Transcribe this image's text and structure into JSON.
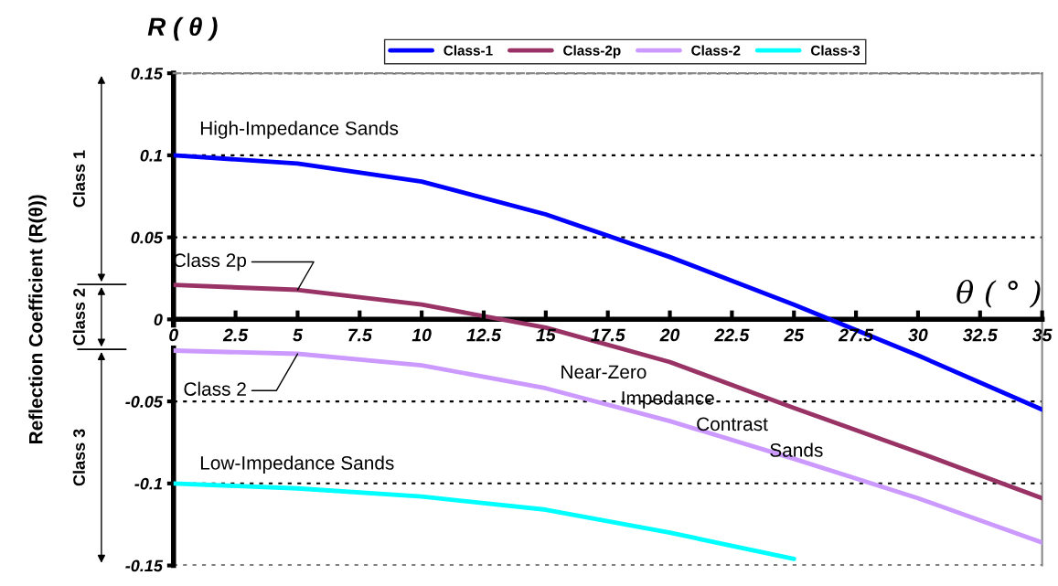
{
  "chart_data": {
    "type": "line",
    "title": "R ( θ )",
    "xlabel": "θ ( ° )",
    "ylabel": "Reflection Coefficient (R(θ))",
    "x": [
      0,
      5,
      10,
      15,
      20,
      25,
      30,
      35
    ],
    "series": [
      {
        "name": "Class-1",
        "color": "#0000ff",
        "values": [
          0.1,
          0.095,
          0.084,
          0.064,
          0.038,
          0.009,
          -0.022,
          -0.055
        ]
      },
      {
        "name": "Class-2p",
        "color": "#993366",
        "values": [
          0.021,
          0.018,
          0.009,
          -0.005,
          -0.026,
          -0.054,
          -0.081,
          -0.109
        ]
      },
      {
        "name": "Class-2",
        "color": "#cc99ff",
        "values": [
          -0.019,
          -0.021,
          -0.028,
          -0.042,
          -0.062,
          -0.085,
          -0.109,
          -0.136
        ]
      },
      {
        "name": "Class-3",
        "color": "#00ffff",
        "values": [
          -0.1,
          -0.103,
          -0.108,
          -0.116,
          -0.13,
          -0.146,
          null,
          null
        ]
      }
    ],
    "xlim": [
      0,
      35
    ],
    "xticks": [
      0,
      2.5,
      5,
      7.5,
      10,
      12.5,
      15,
      17.5,
      20,
      22.5,
      25,
      27.5,
      30,
      32.5,
      35
    ],
    "ylim": [
      -0.15,
      0.15
    ],
    "yticks": [
      -0.15,
      -0.1,
      -0.05,
      0,
      0.05,
      0.1,
      0.15
    ],
    "grid": "y",
    "legend": "top",
    "line_style": "solid",
    "annotations": [
      "Class 1",
      "Class 2",
      "Class 3",
      "High-Impedance Sands",
      {
        "text": "Class 2p",
        "x": 5,
        "y": 0.018
      },
      {
        "text": "Class 2",
        "x": 5,
        "y": -0.021
      },
      "Low-Impedance Sands",
      "Near-Zero Impedance Contrast Sands"
    ]
  }
}
